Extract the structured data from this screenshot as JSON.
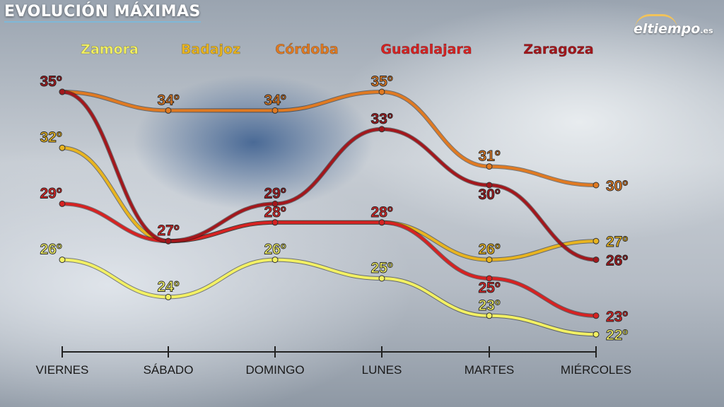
{
  "title": "EVOLUCIÓN MÁXIMAS",
  "logo": {
    "main": "eltiempo",
    "suffix": ".es"
  },
  "chart_data": {
    "type": "line",
    "title": "EVOLUCIÓN MÁXIMAS",
    "categories": [
      "VIERNES",
      "SÁBADO",
      "DOMINGO",
      "LUNES",
      "MARTES",
      "MIÉRCOLES"
    ],
    "unit": "º",
    "ylim": [
      22,
      35
    ],
    "legend": "top",
    "series": [
      {
        "name": "Zamora",
        "color": "#f2f064",
        "values": [
          26,
          24,
          26,
          25,
          23,
          22
        ],
        "shown": [
          1,
          1,
          1,
          1,
          1,
          1
        ]
      },
      {
        "name": "Badajoz",
        "color": "#e8b420",
        "values": [
          32,
          27,
          28,
          28,
          26,
          27
        ],
        "shown": [
          1,
          0,
          0,
          0,
          1,
          1
        ]
      },
      {
        "name": "Córdoba",
        "color": "#e07a22",
        "values": [
          35,
          34,
          34,
          35,
          31,
          30
        ],
        "shown": [
          0,
          1,
          1,
          1,
          1,
          1
        ]
      },
      {
        "name": "Guadalajara",
        "color": "#d62222",
        "values": [
          29,
          27,
          28,
          28,
          25,
          23
        ],
        "shown": [
          1,
          1,
          1,
          1,
          1,
          1
        ]
      },
      {
        "name": "Zaragoza",
        "color": "#a3171c",
        "values": [
          35,
          27,
          29,
          33,
          30,
          26
        ],
        "shown": [
          1,
          0,
          1,
          1,
          1,
          1
        ]
      }
    ]
  }
}
